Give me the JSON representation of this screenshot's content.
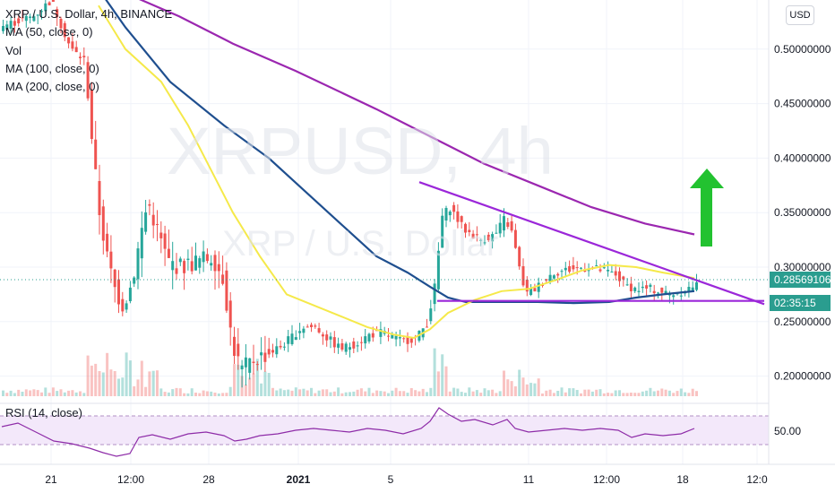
{
  "legend": {
    "symbol": "XRP / U.S. Dollar, 4h, BINANCE",
    "ma50": "MA (50, close, 0)",
    "vol": "Vol",
    "ma100": "MA (100, close, 0)",
    "ma200": "MA (200, close, 0)"
  },
  "watermark": {
    "main": "XRPUSD, 4h",
    "sub": "XRP / U.S. Dollar"
  },
  "currency": "USD",
  "rsi_label": "RSI (14, close)",
  "current_price": {
    "price": "0.28569106",
    "countdown": "02:35:15"
  },
  "colors": {
    "up": "#26a69a",
    "down": "#ef5350",
    "ma50": "#f5e94a",
    "ma100": "#1f4f8f",
    "ma200": "#9b27b0",
    "annotation": "#9b27d9",
    "arrow": "#22c230",
    "rsi": "#8e2ca8"
  },
  "chart_data": {
    "type": "candlestick",
    "x_ticks": [
      "21",
      "12:00",
      "28",
      "2021",
      "5",
      "11",
      "12:00",
      "18",
      "12:0"
    ],
    "y_ticks": [
      "0.50000000",
      "0.45000000",
      "0.40000000",
      "0.35000000",
      "0.30000000",
      "0.25000000",
      "0.20000000"
    ],
    "ylim": [
      0.17,
      0.54
    ],
    "rsi_ticks": [
      "50.00"
    ],
    "annotations": [
      "descending trendline",
      "horizontal support",
      "upward arrow"
    ]
  }
}
